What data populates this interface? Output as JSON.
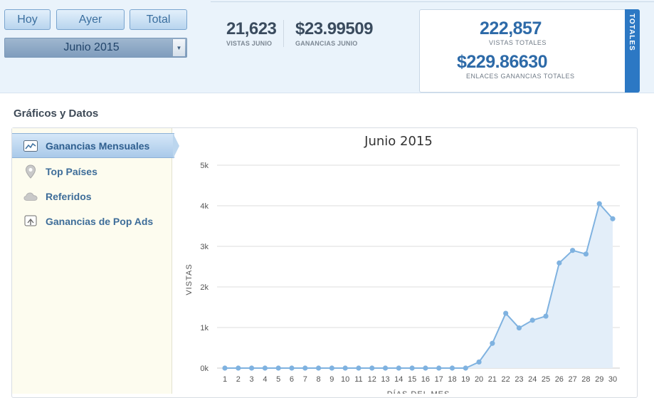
{
  "controls": {
    "today_label": "Hoy",
    "yesterday_label": "Ayer",
    "total_label": "Total",
    "month_selected": "Junio 2015"
  },
  "stats": {
    "views_value": "21,623",
    "views_label": "VISTAS JUNIO",
    "earnings_value": "$23.99509",
    "earnings_label": "GANANCIAS JUNIO"
  },
  "totals": {
    "tab_label": "TOTALES",
    "views_value": "222,857",
    "views_label": "VISTAS TOTALES",
    "earnings_value": "$229.86630",
    "earnings_label": "ENLACES GANANCIAS TOTALES"
  },
  "section": {
    "title": "Gráficos y Datos"
  },
  "nav": [
    {
      "label": "Ganancias Mensuales",
      "icon": "line-chart-icon",
      "active": true
    },
    {
      "label": "Top Países",
      "icon": "map-pin-icon",
      "active": false
    },
    {
      "label": "Referidos",
      "icon": "cloud-icon",
      "active": false
    },
    {
      "label": "Ganancias de Pop Ads",
      "icon": "upload-screen-icon",
      "active": false
    }
  ],
  "colors": {
    "accent": "#2c78c4",
    "line": "#7fb2e0",
    "area": "#e3eef9",
    "nav_active": "#bcd6ee"
  },
  "chart_data": {
    "type": "area",
    "title": "Junio 2015",
    "xlabel": "DÍAS DEL MES",
    "ylabel": "VISTAS",
    "x": [
      1,
      2,
      3,
      4,
      5,
      6,
      7,
      8,
      9,
      10,
      11,
      12,
      13,
      14,
      15,
      16,
      17,
      18,
      19,
      20,
      21,
      22,
      23,
      24,
      25,
      26,
      27,
      28,
      29,
      30
    ],
    "y_ticks": [
      "0k",
      "1k",
      "2k",
      "3k",
      "4k",
      "5k"
    ],
    "ylim": [
      0,
      5000
    ],
    "grid": true,
    "series": [
      {
        "values": [
          0,
          0,
          0,
          0,
          0,
          0,
          0,
          0,
          0,
          0,
          0,
          0,
          0,
          0,
          0,
          0,
          0,
          0,
          0,
          150,
          610,
          1350,
          990,
          1180,
          1280,
          2590,
          2900,
          2810,
          4050,
          3680
        ]
      }
    ]
  }
}
